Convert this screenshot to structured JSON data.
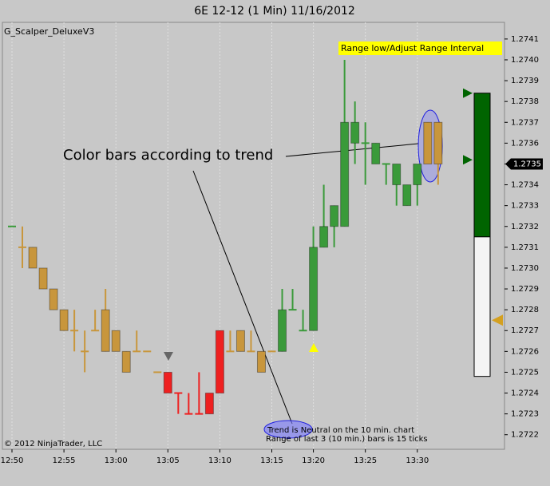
{
  "chart_data": {
    "type": "candlestick",
    "title": "6E 12-12 (1 Min)  11/16/2012",
    "indicator": "G_Scalper_DeluxeV3",
    "copyright": "© 2012 NinjaTrader, LLC",
    "annotations": {
      "range_button": "Range low/Adjust Range Interval",
      "callout": "Color bars according to trend",
      "trend": "Trend is Neutral on the 10 min. chart",
      "range": "Range of last 3 (10 min.) bars is 15 ticks"
    },
    "categories": [
      "12:50",
      null,
      null,
      null,
      null,
      "12:55",
      null,
      null,
      null,
      null,
      "13:00",
      null,
      null,
      null,
      null,
      "13:05",
      null,
      null,
      null,
      null,
      "13:10",
      null,
      null,
      null,
      null,
      "13:15",
      null,
      null,
      null,
      "13:20",
      null,
      null,
      null,
      null,
      "13:25",
      null,
      null,
      null,
      null,
      "13:30",
      null,
      null
    ],
    "open": [
      1.2732,
      1.2731,
      1.2731,
      1.273,
      1.2729,
      1.2728,
      1.2727,
      1.2726,
      1.2727,
      1.2726,
      1.2727,
      1.2726,
      1.2726,
      1.2726,
      1.2725,
      1.2725,
      1.2724,
      1.2723,
      1.2723,
      1.2723,
      1.2724,
      1.2726,
      1.2727,
      1.2726,
      1.2726,
      1.2726,
      1.2726,
      1.2728,
      1.2727,
      1.2727,
      1.2731,
      1.2732,
      1.2732,
      1.2737,
      1.2736,
      1.2736,
      1.2735,
      1.2735,
      1.2734,
      1.2734,
      1.2735,
      1.2737
    ],
    "high": [
      1.2732,
      1.2732,
      1.2731,
      1.273,
      1.2729,
      1.2728,
      1.2728,
      1.2727,
      1.2728,
      1.2729,
      1.2727,
      1.2726,
      1.2727,
      1.2726,
      1.2725,
      1.2725,
      1.2724,
      1.2724,
      1.2725,
      1.2724,
      1.2727,
      1.2727,
      1.2727,
      1.2727,
      1.2726,
      1.2726,
      1.2729,
      1.2729,
      1.2728,
      1.2732,
      1.2734,
      1.2733,
      1.274,
      1.2738,
      1.2737,
      1.2736,
      1.2735,
      1.2735,
      1.2734,
      1.2735,
      1.2737,
      1.2737
    ],
    "low": [
      1.2732,
      1.273,
      1.273,
      1.2729,
      1.2728,
      1.2727,
      1.2726,
      1.2725,
      1.2727,
      1.2726,
      1.2726,
      1.2725,
      1.2726,
      1.2726,
      1.2725,
      1.2724,
      1.2723,
      1.2723,
      1.2723,
      1.2723,
      1.2724,
      1.2726,
      1.2726,
      1.2726,
      1.2725,
      1.2726,
      1.2726,
      1.2728,
      1.2727,
      1.2727,
      1.2731,
      1.2731,
      1.2732,
      1.2735,
      1.2734,
      1.2735,
      1.2734,
      1.2733,
      1.2733,
      1.2733,
      1.2735,
      1.2734
    ],
    "close": [
      1.2732,
      1.2731,
      1.273,
      1.2729,
      1.2728,
      1.2727,
      1.2727,
      1.2726,
      1.2727,
      1.2728,
      1.2726,
      1.2725,
      1.2726,
      1.2726,
      1.2725,
      1.2724,
      1.2724,
      1.2723,
      1.2723,
      1.2724,
      1.2727,
      1.2726,
      1.2726,
      1.2726,
      1.2725,
      1.2726,
      1.2728,
      1.2728,
      1.2727,
      1.2731,
      1.2732,
      1.2733,
      1.2737,
      1.2736,
      1.2736,
      1.2735,
      1.2735,
      1.2734,
      1.2733,
      1.2735,
      1.2737,
      1.2735
    ],
    "colors": [
      "#3a9a3a",
      "#c8963c",
      "#c8963c",
      "#c8963c",
      "#c8963c",
      "#c8963c",
      "#c8963c",
      "#c8963c",
      "#c8963c",
      "#c8963c",
      "#c8963c",
      "#c8963c",
      "#c8963c",
      "#c8963c",
      "#c8963c",
      "#ee2020",
      "#ee2020",
      "#ee2020",
      "#ee2020",
      "#ee2020",
      "#ee2020",
      "#c8963c",
      "#c8963c",
      "#c8963c",
      "#c8963c",
      "#c8963c",
      "#3a9a3a",
      "#3a9a3a",
      "#3a9a3a",
      "#3a9a3a",
      "#3a9a3a",
      "#3a9a3a",
      "#3a9a3a",
      "#3a9a3a",
      "#3a9a3a",
      "#3a9a3a",
      "#3a9a3a",
      "#3a9a3a",
      "#3a9a3a",
      "#3a9a3a",
      "#c8963c",
      "#c8963c"
    ],
    "last_price": 1.2735,
    "range_box": {
      "top": 1.27384,
      "split": 1.27315,
      "bottom": 1.27248,
      "color": "#006400"
    },
    "range_arrows": [
      {
        "value": 1.27384,
        "color": "#006400"
      },
      {
        "value": 1.27352,
        "color": "#006400"
      },
      {
        "value": 1.27275,
        "color": "#d4a020"
      }
    ],
    "ylim": [
      1.27213,
      1.27418
    ],
    "yticks": [
      1.2722,
      1.2723,
      1.2724,
      1.2725,
      1.2726,
      1.2727,
      1.2728,
      1.2729,
      {
        "value": 1.273,
        "label": "1.2730"
      },
      1.2731,
      1.2732,
      1.2733,
      1.2734,
      1.2735,
      1.2736,
      1.2737,
      1.2738,
      1.2739,
      {
        "value": 1.274,
        "label": "1.2740"
      },
      1.2741
    ],
    "grid": true
  }
}
